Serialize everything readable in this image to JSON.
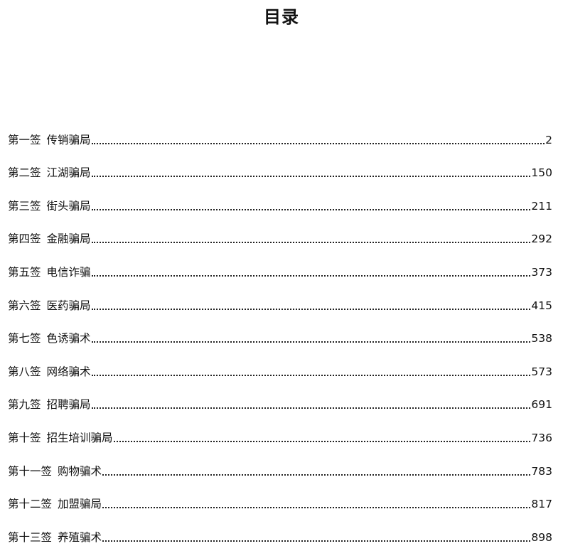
{
  "title": "目录",
  "entries": [
    {
      "number": "第一签",
      "name": "传销骗局",
      "page": "2"
    },
    {
      "number": "第二签",
      "name": "江湖骗局",
      "page": "150"
    },
    {
      "number": "第三签",
      "name": "街头骗局",
      "page": "211"
    },
    {
      "number": "第四签",
      "name": "金融骗局",
      "page": "292"
    },
    {
      "number": "第五签",
      "name": "电信诈骗",
      "page": "373"
    },
    {
      "number": "第六签",
      "name": "医药骗局",
      "page": "415"
    },
    {
      "number": "第七签",
      "name": "色诱骗术",
      "page": "538"
    },
    {
      "number": "第八签",
      "name": "网络骗术",
      "page": "573"
    },
    {
      "number": "第九签",
      "name": "招聘骗局",
      "page": "691"
    },
    {
      "number": "第十签",
      "name": "招生培训骗局",
      "page": "736"
    },
    {
      "number": "第十一签",
      "name": "购物骗术",
      "page": "783"
    },
    {
      "number": "第十二签",
      "name": "加盟骗局",
      "page": "817"
    },
    {
      "number": "第十三签",
      "name": "养殖骗术",
      "page": "898"
    }
  ]
}
